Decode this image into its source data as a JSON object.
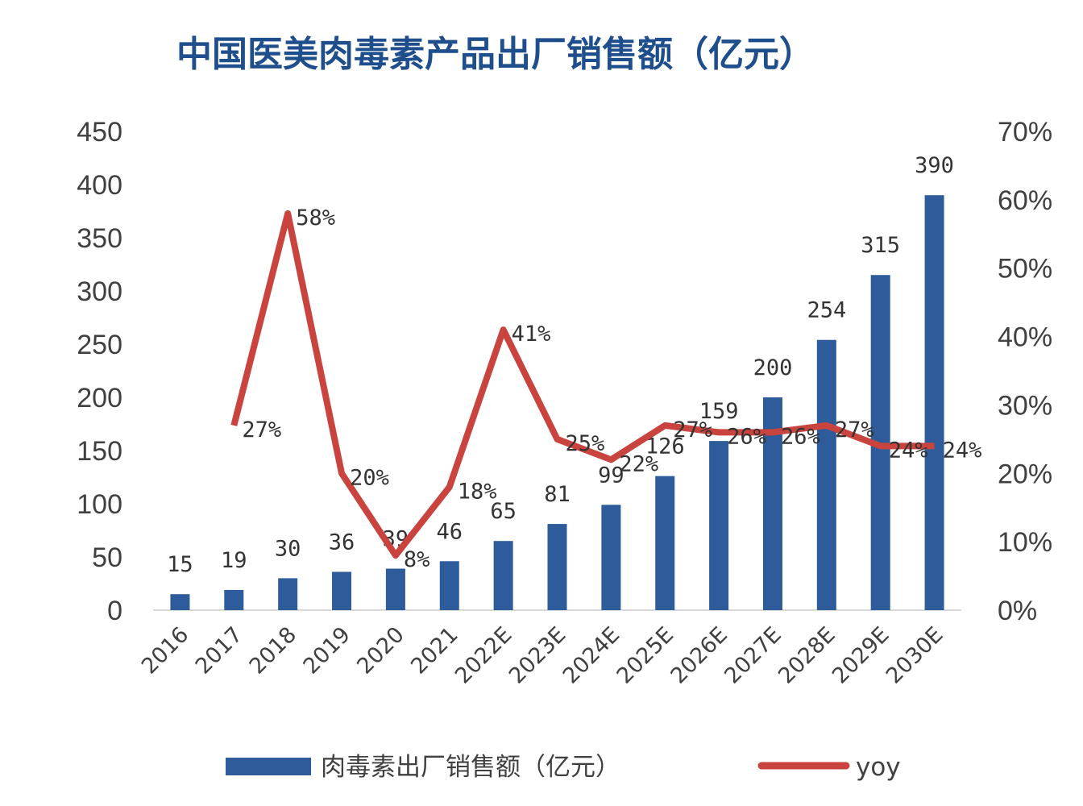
{
  "chart_data": {
    "type": "bar+line",
    "title": "中国医美肉毒素产品出厂销售额（亿元）",
    "categories": [
      "2016",
      "2017",
      "2018",
      "2019",
      "2020",
      "2021",
      "2022E",
      "2023E",
      "2024E",
      "2025E",
      "2026E",
      "2027E",
      "2028E",
      "2029E",
      "2030E"
    ],
    "series": [
      {
        "name": "肉毒素出厂销售额（亿元）",
        "type": "bar",
        "axis": "left",
        "color": "#2e5c9a",
        "values": [
          15,
          19,
          30,
          36,
          39,
          46,
          65,
          81,
          99,
          126,
          159,
          200,
          254,
          315,
          390
        ],
        "labels": [
          "15",
          "19",
          "30",
          "36",
          "39",
          "46",
          "65",
          "81",
          "99",
          "126",
          "159",
          "200",
          "254",
          "315",
          "390"
        ]
      },
      {
        "name": "yoy",
        "type": "line",
        "axis": "right",
        "color": "#c9433f",
        "values": [
          null,
          27,
          58,
          20,
          8,
          18,
          41,
          25,
          22,
          27,
          26,
          26,
          27,
          24,
          24
        ],
        "labels": [
          null,
          "27%",
          "58%",
          "20%",
          "8%",
          "18%",
          "41%",
          "25%",
          "22%",
          "27%",
          "26%",
          "26%",
          "27%",
          "24%",
          "24%"
        ]
      }
    ],
    "y_left": {
      "range": [
        0,
        450
      ],
      "ticks": [
        "0",
        "50",
        "100",
        "150",
        "200",
        "250",
        "300",
        "350",
        "400",
        "450"
      ]
    },
    "y_right": {
      "range": [
        0,
        70
      ],
      "ticks": [
        "0%",
        "10%",
        "20%",
        "30%",
        "40%",
        "50%",
        "60%",
        "70%"
      ]
    },
    "grid": false,
    "legend_placement": "bottom"
  }
}
